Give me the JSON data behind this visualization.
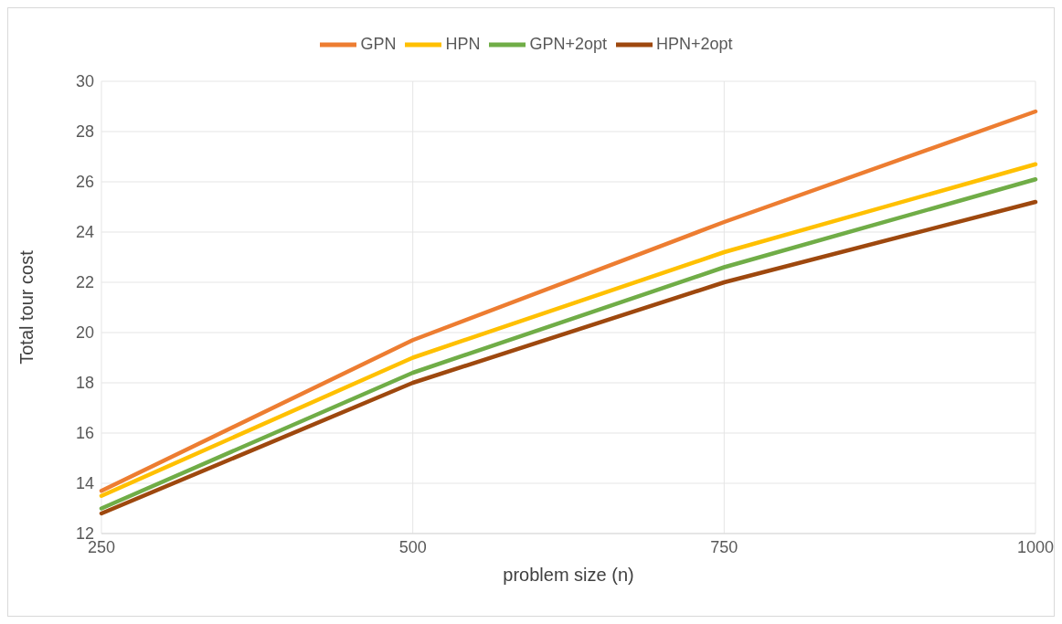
{
  "chart_data": {
    "type": "line",
    "xlabel": "problem size (n)",
    "ylabel": "Total tour cost",
    "categories": [
      "250",
      "500",
      "750",
      "1000"
    ],
    "series": [
      {
        "name": "GPN",
        "color": "#ed7d31",
        "values": [
          13.7,
          19.7,
          24.4,
          28.8
        ]
      },
      {
        "name": "HPN",
        "color": "#ffc000",
        "values": [
          13.5,
          19.0,
          23.2,
          26.7
        ]
      },
      {
        "name": "GPN+2opt",
        "color": "#70ad47",
        "values": [
          13.0,
          18.4,
          22.6,
          26.1
        ]
      },
      {
        "name": "HPN+2opt",
        "color": "#9e480e",
        "values": [
          12.8,
          18.0,
          22.0,
          25.2
        ]
      }
    ],
    "ylim": [
      12,
      30
    ],
    "yticks": [
      12,
      14,
      16,
      18,
      20,
      22,
      24,
      26,
      28,
      30
    ],
    "grid": true,
    "legend": "top",
    "marker": "none",
    "line_style": "solid"
  }
}
